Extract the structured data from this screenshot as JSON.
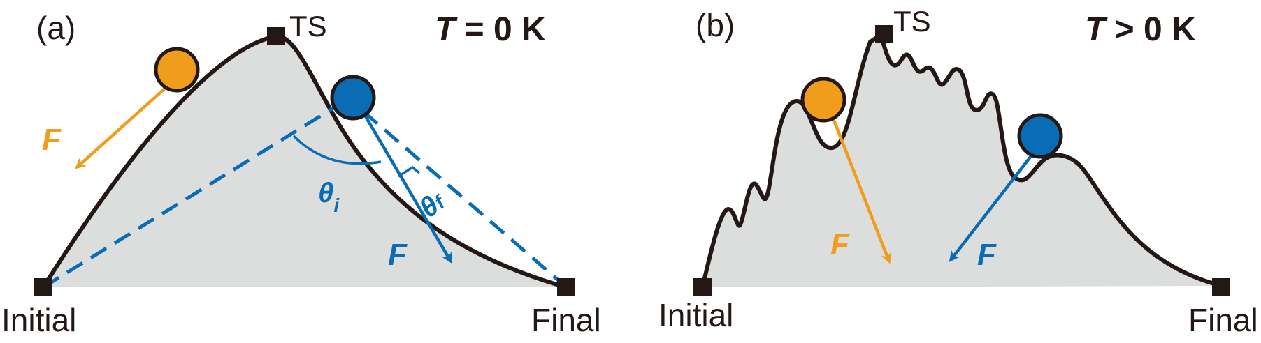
{
  "panels": [
    {
      "tag": "(a)",
      "condition": {
        "var": "T",
        "rest": " = 0 K"
      },
      "ts_label": "TS",
      "initial_label": "Initial",
      "final_label": "Final",
      "force_orange": "F",
      "force_blue": "F",
      "theta_i": {
        "sym": "θ",
        "sub": "i"
      },
      "theta_f": {
        "sym": "θ",
        "sub": "f"
      }
    },
    {
      "tag": "(b)",
      "condition": {
        "var": "T",
        "rest": " > 0 K"
      },
      "ts_label": "TS",
      "initial_label": "Initial",
      "final_label": "Final",
      "force_orange": "F",
      "force_blue": "F"
    }
  ],
  "colors": {
    "orange": "#f09c1c",
    "blue": "#0a6cb4",
    "curve": "#231815",
    "fill": "#dcdddd"
  }
}
